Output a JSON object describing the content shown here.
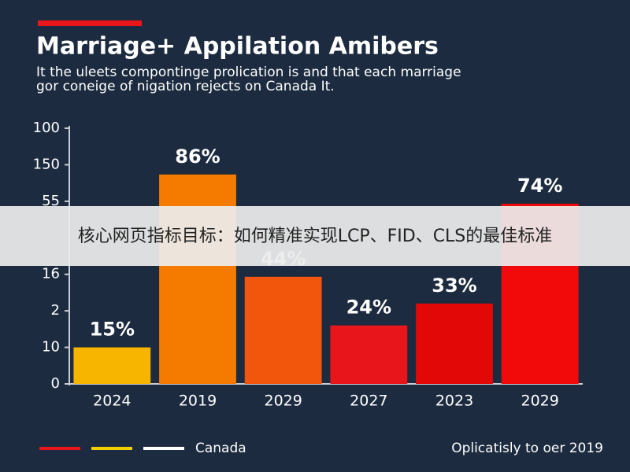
{
  "chart_data": {
    "type": "bar",
    "title": "Marriage+ Appilation Amibers",
    "subtitle": [
      "It the uleets compontinge prolication is and that each marriage",
      "gor coneige of nigation rejects on Canada It."
    ],
    "categories": [
      "2024",
      "2019",
      "2029",
      "2027",
      "2023",
      "2029"
    ],
    "values": [
      15,
      86,
      44,
      24,
      33,
      74
    ],
    "value_labels": [
      "15%",
      "86%",
      "44%",
      "24%",
      "33%",
      "74%"
    ],
    "colors": [
      "#f7b500",
      "#f57a00",
      "#f2560c",
      "#e8151b",
      "#e30808",
      "#f20a0a"
    ],
    "ylim": [
      0,
      105
    ],
    "yticks": [
      0,
      {
        "value": 15,
        "label": "10"
      },
      {
        "value": 30,
        "label": "2"
      },
      {
        "value": 45,
        "label": "16"
      },
      {
        "value": 75,
        "label": "55"
      },
      {
        "value": 90,
        "label": "150"
      },
      {
        "value": 105,
        "label": "100"
      }
    ],
    "grid": false,
    "legend": {
      "label": "Canada",
      "colors": [
        "#e8151b",
        "#f2d000",
        "#ffffff"
      ]
    },
    "footnote": "Oplicatisly to oer 2019"
  },
  "banner": "核心网页指标目标：如何精准实现LCP、FID、CLS的最佳标准"
}
